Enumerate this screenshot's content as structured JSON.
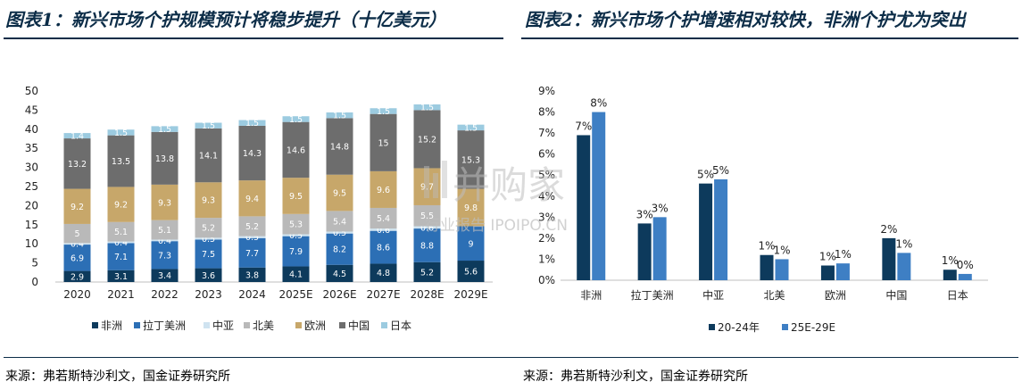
{
  "titles": {
    "left": "图表1：新兴市场个护规模预计将稳步提升（十亿美元）",
    "right": "图表2：新兴市场个护增速相对较快，非洲个护尤为突出"
  },
  "sources": {
    "left": "来源：弗若斯特沙利文，国金证券研究所",
    "right": "来源：弗若斯特沙利文，国金证券研究所"
  },
  "watermark": {
    "main": "并购家",
    "sub": "行业报告 IPOIPO.CN"
  },
  "chart_data": [
    {
      "type": "bar",
      "stacked": true,
      "categories": [
        "2020",
        "2021",
        "2022",
        "2023",
        "2024",
        "2025E",
        "2026E",
        "2027E",
        "2028E",
        "2029E"
      ],
      "ylim": [
        0,
        50
      ],
      "yticks": [
        0,
        5,
        10,
        15,
        20,
        25,
        30,
        35,
        40,
        45,
        50
      ],
      "legend_position": "bottom",
      "series": [
        {
          "name": "非洲",
          "color": "#0d3a5c",
          "label_color": "#ffffff",
          "values": [
            2.9,
            3.1,
            3.4,
            3.6,
            3.8,
            4.1,
            4.5,
            4.8,
            5.2,
            5.6
          ]
        },
        {
          "name": "拉丁美洲",
          "color": "#2c6fb5",
          "label_color": "#ffffff",
          "values": [
            6.9,
            7.1,
            7.3,
            7.5,
            7.7,
            7.9,
            8.2,
            8.6,
            8.8,
            9
          ]
        },
        {
          "name": "中亚",
          "color": "#cfe3f0",
          "label_color": "#ffffff",
          "values": [
            0.4,
            0.4,
            0.4,
            0.5,
            0.5,
            0.5,
            0.5,
            0.6,
            0.6,
            null
          ]
        },
        {
          "name": "北美",
          "color": "#b9b9b9",
          "label_color": "#ffffff",
          "values": [
            5,
            5.1,
            5.1,
            5.2,
            5.2,
            5.3,
            5.4,
            5.4,
            5.5,
            null
          ]
        },
        {
          "name": "欧洲",
          "color": "#c7a76a",
          "label_color": "#ffffff",
          "values": [
            9.2,
            9.2,
            9.3,
            9.3,
            9.4,
            9.5,
            9.5,
            9.6,
            9.7,
            9.8
          ]
        },
        {
          "name": "中国",
          "color": "#6d6d6d",
          "label_color": "#ffffff",
          "values": [
            13.2,
            13.5,
            13.8,
            14.1,
            14.3,
            14.6,
            14.8,
            15,
            15.2,
            15.3
          ]
        },
        {
          "name": "日本",
          "color": "#9ccbe0",
          "label_color": "#ffffff",
          "values": [
            1.4,
            1.5,
            1.5,
            1.5,
            1.5,
            1.5,
            1.5,
            1.5,
            1.5,
            1.5
          ]
        }
      ]
    },
    {
      "type": "bar",
      "categories": [
        "非洲",
        "拉丁美洲",
        "中亚",
        "北美",
        "欧洲",
        "中国",
        "日本"
      ],
      "ylim": [
        0,
        9
      ],
      "yticks": [
        "0%",
        "1%",
        "2%",
        "3%",
        "4%",
        "5%",
        "6%",
        "7%",
        "8%",
        "9%"
      ],
      "legend_position": "bottom",
      "series": [
        {
          "name": "20-24年",
          "color": "#0d3a5c",
          "values": [
            6.9,
            2.7,
            4.6,
            1.2,
            0.7,
            2.0,
            0.5
          ],
          "labels": [
            "7%",
            "3%",
            "5%",
            "1%",
            "1%",
            "2%",
            "1%"
          ]
        },
        {
          "name": "25E-29E",
          "color": "#3e7fc4",
          "values": [
            8.0,
            3.0,
            4.8,
            1.0,
            0.8,
            1.3,
            0.3
          ],
          "labels": [
            "8%",
            "3%",
            "5%",
            "1%",
            "1%",
            "1%",
            "0%"
          ]
        }
      ]
    }
  ]
}
